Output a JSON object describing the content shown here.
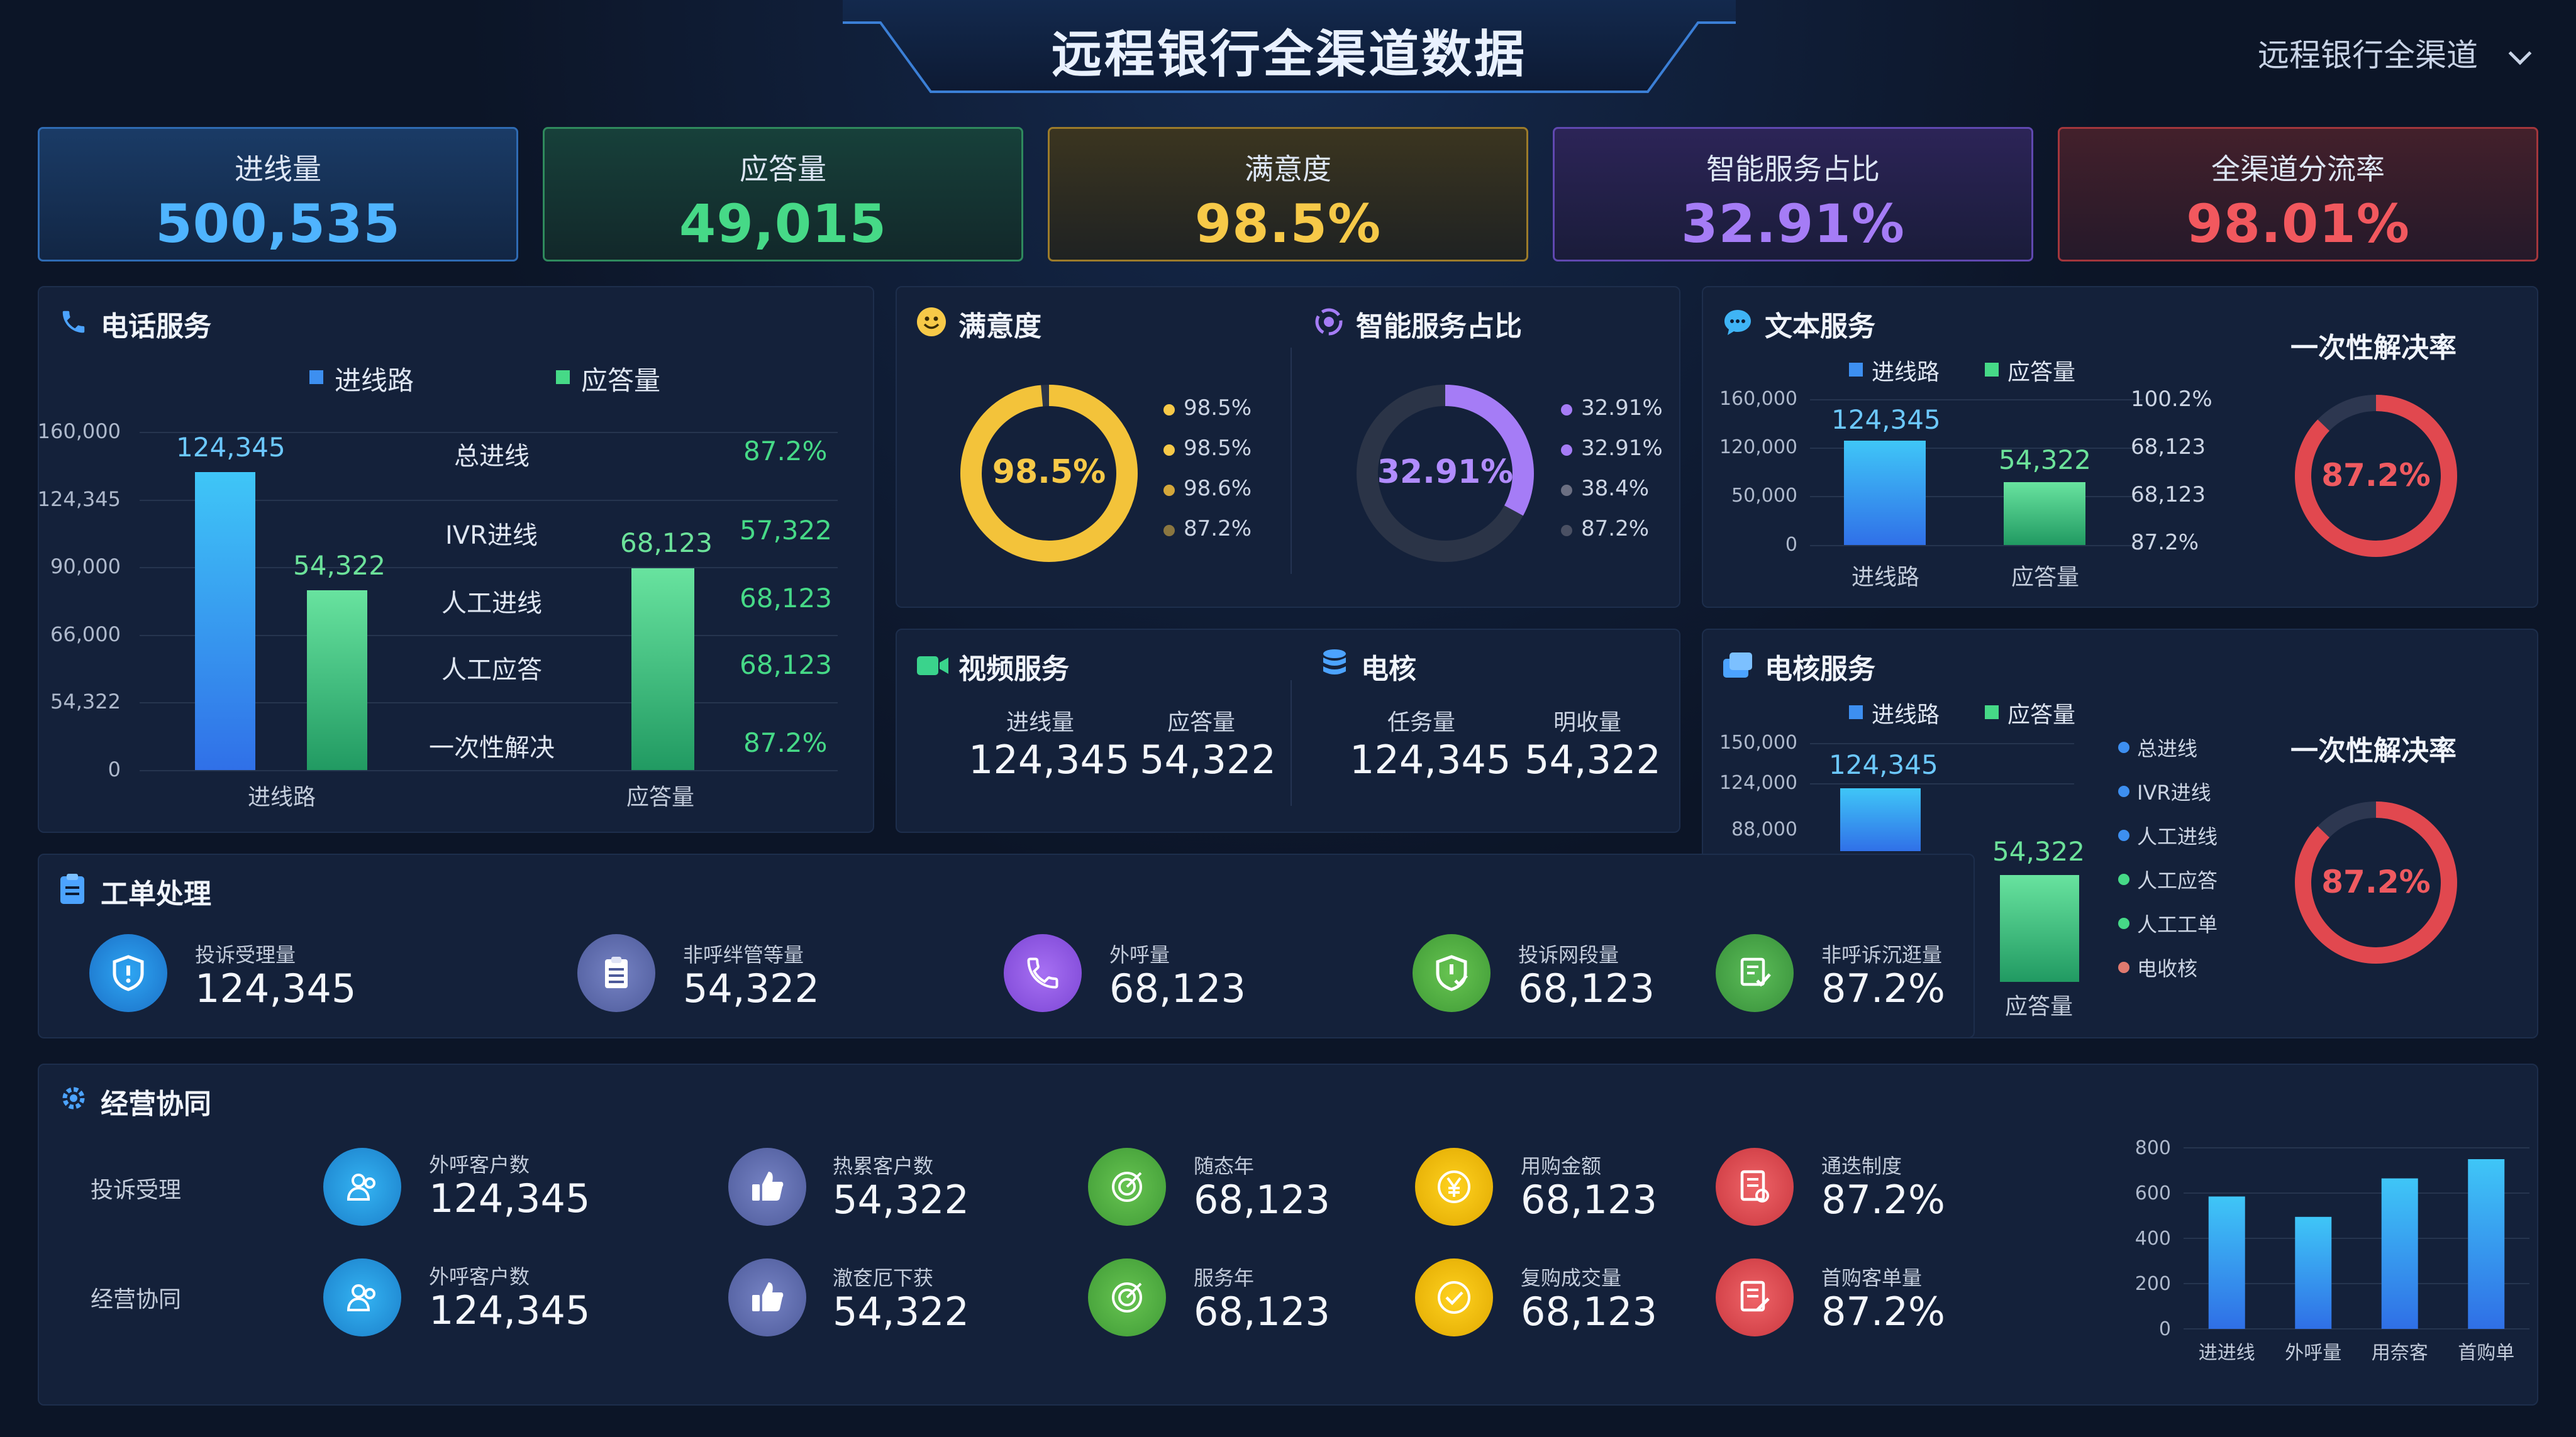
{
  "header": {
    "title": "远程银行全渠道数据",
    "channel_select": "远程银行全渠道"
  },
  "kpis": [
    {
      "label": "进线量",
      "value": "500,535",
      "color": "#4fb4ff"
    },
    {
      "label": "应答量",
      "value": "49,015",
      "color": "#46d987"
    },
    {
      "label": "满意度",
      "value": "98.5%",
      "color": "#f7c948"
    },
    {
      "label": "智能服务占比",
      "value": "32.91%",
      "color": "#a57cf6"
    },
    {
      "label": "全渠道分流率",
      "value": "98.01%",
      "color": "#f2585e"
    }
  ],
  "phone": {
    "title": "电话服务",
    "legend": [
      "进线路",
      "应答量"
    ],
    "yticks": [
      "160,000",
      "124,345",
      "90,000",
      "66,000",
      "54,322",
      "0"
    ],
    "bar_labels": [
      "124,345",
      "54,322",
      "68,123"
    ],
    "xlabels": [
      "进线路",
      "应答量"
    ],
    "stats": [
      {
        "label": "总进线",
        "value": "87.2%"
      },
      {
        "label": "IVR进线",
        "value": "57,322"
      },
      {
        "label": "人工进线",
        "value": "68,123"
      },
      {
        "label": "人工应答",
        "value": "68,123"
      },
      {
        "label": "一次性解决",
        "value": "87.2%"
      }
    ]
  },
  "satisfaction": {
    "title": "满意度",
    "center": "98.5%",
    "level": 0.985,
    "legend": [
      "98.5%",
      "98.5%",
      "98.6%",
      "87.2%"
    ]
  },
  "smart": {
    "title": "智能服务占比",
    "center": "32.91%",
    "level": 0.3291,
    "legend": [
      "32.91%",
      "32.91%",
      "38.4%",
      "87.2%"
    ]
  },
  "text_service": {
    "title": "文本服务",
    "legend": [
      "进线路",
      "应答量"
    ],
    "yticks": [
      "160,000",
      "120,000",
      "50,000",
      "0"
    ],
    "bar_labels": [
      "124,345",
      "54,322"
    ],
    "xlabels": [
      "进线路",
      "应答量"
    ],
    "right_values": [
      "100.2%",
      "68,123",
      "68,123",
      "87.2%"
    ],
    "resolution_title": "一次性解决率",
    "resolution": "87.2%",
    "resolution_level": 0.872
  },
  "video": {
    "title": "视频服务",
    "items": [
      {
        "label": "进线量",
        "value": "124,345"
      },
      {
        "label": "应答量",
        "value": "54,322"
      }
    ]
  },
  "audit": {
    "title": "电核",
    "items": [
      {
        "label": "任务量",
        "value": "124,345"
      },
      {
        "label": "明收量",
        "value": "54,322"
      }
    ]
  },
  "audit_service": {
    "title": "电核服务",
    "legend": [
      "进线路",
      "应答量"
    ],
    "yticks": [
      "150,000",
      "124,000",
      "88,000"
    ],
    "bar_labels": [
      "124,345",
      "54,322"
    ],
    "xlabel": "应答量",
    "side_legend": [
      "总进线",
      "IVR进线",
      "人工进线",
      "人工应答",
      "人工工单",
      "电收核"
    ],
    "resolution_title": "一次性解决率",
    "resolution": "87.2%",
    "resolution_level": 0.872
  },
  "workorder": {
    "title": "工单处理",
    "items": [
      {
        "label": "投诉受理量",
        "value": "124,345",
        "icon": "shield-icon"
      },
      {
        "label": "非呼绊管等量",
        "value": "54,322",
        "icon": "clipboard-icon"
      },
      {
        "label": "外呼量",
        "value": "68,123",
        "icon": "phone-icon"
      },
      {
        "label": "投诉网段量",
        "value": "68,123",
        "icon": "shield-check-icon"
      },
      {
        "label": "非呼诉沉逛量",
        "value": "87.2%",
        "icon": "document-check-icon"
      }
    ]
  },
  "operations": {
    "title": "经营协同",
    "rows": [
      {
        "label": "投诉受理",
        "items": [
          {
            "label": "外呼客户数",
            "value": "124,345",
            "icon": "users-icon"
          },
          {
            "label": "热累客户数",
            "value": "54,322",
            "icon": "thumbs-up-icon"
          },
          {
            "label": "随态年",
            "value": "68,123",
            "icon": "target-icon"
          },
          {
            "label": "用购金额",
            "value": "68,123",
            "icon": "yen-icon"
          },
          {
            "label": "通迭制度",
            "value": "87.2%",
            "icon": "document-icon"
          }
        ]
      },
      {
        "label": "经营协同",
        "items": [
          {
            "label": "外呼客户数",
            "value": "124,345",
            "icon": "users-icon"
          },
          {
            "label": "澈奁厄下获",
            "value": "54,322",
            "icon": "thumbs-up-icon"
          },
          {
            "label": "服务年",
            "value": "68,123",
            "icon": "target-icon"
          },
          {
            "label": "复购成交量",
            "value": "68,123",
            "icon": "check-circle-icon"
          },
          {
            "label": "首购客单量",
            "value": "87.2%",
            "icon": "document-edit-icon"
          }
        ]
      }
    ]
  },
  "chart_data": {
    "type": "bar",
    "categories": [
      "进进线",
      "外呼量",
      "用奈客",
      "首购单"
    ],
    "values": [
      585,
      495,
      665,
      750
    ],
    "ylim": [
      0,
      800
    ],
    "yticks": [
      "800",
      "600",
      "400",
      "200",
      "0"
    ],
    "grid": true
  }
}
